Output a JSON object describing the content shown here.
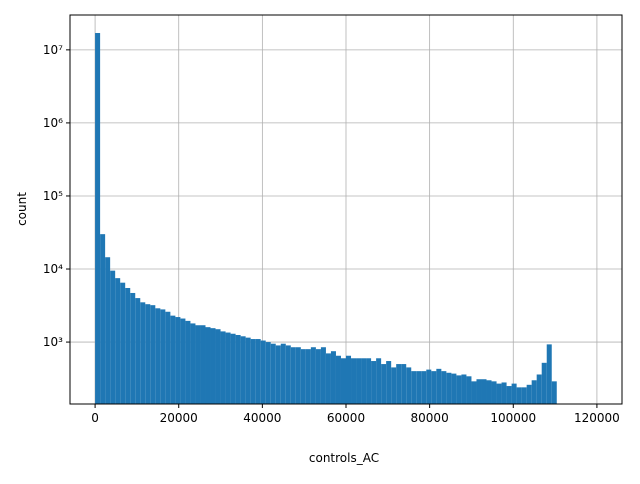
{
  "chart_data": {
    "type": "histogram",
    "xlabel": "controls_AC",
    "ylabel": "count",
    "color": "#1f77b4",
    "grid": true,
    "ylog": true,
    "bins": [
      0,
      1200,
      2400,
      3600,
      4800,
      6000,
      7200,
      8400,
      9600,
      10800,
      12000,
      13200,
      14400,
      15600,
      16800,
      18000,
      19200,
      20400,
      21600,
      22800,
      24000,
      25200,
      26400,
      27600,
      28800,
      30000,
      31200,
      32400,
      33600,
      34800,
      36000,
      37200,
      38400,
      39600,
      40800,
      42000,
      43200,
      44400,
      45600,
      46800,
      48000,
      49200,
      50400,
      51600,
      52800,
      54000,
      55200,
      56400,
      57600,
      58800,
      60000,
      61200,
      62400,
      63600,
      64800,
      66000,
      67200,
      68400,
      69600,
      70800,
      72000,
      73200,
      74400,
      75600,
      76800,
      78000,
      79200,
      80400,
      81600,
      82800,
      84000,
      85200,
      86400,
      87600,
      88800,
      90000,
      91200,
      92400,
      93600,
      94800,
      96000,
      97200,
      98400,
      99600,
      100800,
      102000,
      103200,
      104400,
      105600,
      106800,
      108000,
      109200,
      110400,
      111600,
      112800,
      114000,
      115200,
      116400,
      117600,
      118800,
      120000
    ],
    "values": [
      17000000,
      30000,
      14500,
      9500,
      7500,
      6500,
      5500,
      4700,
      4000,
      3500,
      3300,
      3200,
      2900,
      2800,
      2600,
      2300,
      2200,
      2100,
      1950,
      1800,
      1700,
      1700,
      1600,
      1550,
      1500,
      1400,
      1350,
      1300,
      1250,
      1200,
      1150,
      1100,
      1100,
      1050,
      1000,
      950,
      900,
      950,
      900,
      850,
      850,
      800,
      800,
      850,
      800,
      850,
      700,
      750,
      650,
      600,
      650,
      600,
      600,
      600,
      600,
      550,
      600,
      500,
      550,
      450,
      500,
      500,
      450,
      400,
      400,
      400,
      420,
      400,
      430,
      400,
      380,
      370,
      350,
      360,
      340,
      290,
      310,
      310,
      300,
      290,
      270,
      280,
      250,
      270,
      240,
      240,
      260,
      300,
      360,
      520,
      930,
      290,
      0,
      0,
      0,
      0,
      0,
      0,
      0,
      0
    ],
    "xlim": [
      -6000,
      126000
    ],
    "xticks": [
      0,
      20000,
      40000,
      60000,
      80000,
      100000,
      120000
    ],
    "ylim": [
      142,
      30000000
    ],
    "yticks": [
      {
        "value": 1000,
        "label": "10³"
      },
      {
        "value": 10000,
        "label": "10⁴"
      },
      {
        "value": 100000,
        "label": "10⁵"
      },
      {
        "value": 1000000,
        "label": "10⁶"
      },
      {
        "value": 10000000,
        "label": "10⁷"
      }
    ]
  }
}
